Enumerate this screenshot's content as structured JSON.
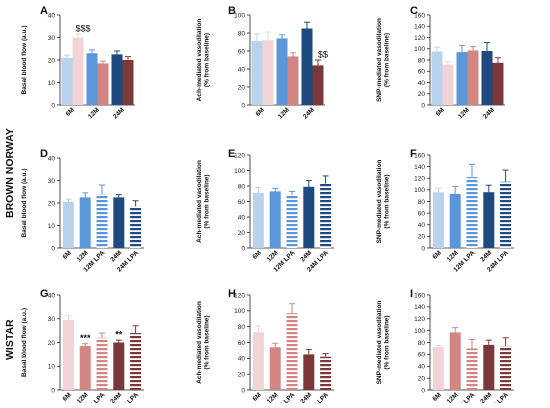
{
  "colors": {
    "bn_6m": "#b9d3ee",
    "bn_12m": "#5b96d8",
    "bn_24m": "#1f4a7f",
    "w_6m": "#f2d3d6",
    "w_12m": "#d28684",
    "w_24m": "#7a3838"
  },
  "row_labels": {
    "brown_norway": "BROWN NORWAY",
    "wistar": "WISTAR"
  },
  "chart_data": [
    {
      "id": "A",
      "type": "bar",
      "ylabel": "Basal blood flow (a.u.)",
      "ylim": [
        0,
        40
      ],
      "ticks": [
        0,
        10,
        20,
        30,
        40
      ],
      "groups": [
        "6M",
        "12M",
        "24M"
      ],
      "bars": [
        {
          "value": 21,
          "error": 1.2,
          "color": "#b9d3ee"
        },
        {
          "value": 30,
          "error": 1.5,
          "color": "#f2d3d6",
          "annotation": "$$$"
        },
        {
          "value": 23,
          "error": 1.5,
          "color": "#5b96d8"
        },
        {
          "value": 18.5,
          "error": 1,
          "color": "#d28684"
        },
        {
          "value": 22.5,
          "error": 1.5,
          "color": "#1f4a7f"
        },
        {
          "value": 20,
          "error": 1.5,
          "color": "#7a3838"
        }
      ]
    },
    {
      "id": "B",
      "type": "bar",
      "ylabel": "Ach-mediated vasodilation (% from baseline)",
      "ylim": [
        0,
        100
      ],
      "ticks": [
        0,
        20,
        40,
        60,
        80,
        100
      ],
      "groups": [
        "6M",
        "12M",
        "24M"
      ],
      "bars": [
        {
          "value": 71,
          "error": 8,
          "color": "#b9d3ee"
        },
        {
          "value": 72,
          "error": 9,
          "color": "#f2d3d6"
        },
        {
          "value": 74,
          "error": 4,
          "color": "#5b96d8"
        },
        {
          "value": 54,
          "error": 4,
          "color": "#d28684"
        },
        {
          "value": 85,
          "error": 7,
          "color": "#1f4a7f"
        },
        {
          "value": 44,
          "error": 6,
          "color": "#7a3838",
          "annotation": "$$"
        }
      ]
    },
    {
      "id": "C",
      "type": "bar",
      "ylabel": "SNP-mediated vasodilation (% from baseline)",
      "ylim": [
        0,
        160
      ],
      "ticks": [
        0,
        20,
        40,
        60,
        80,
        100,
        120,
        140,
        160
      ],
      "groups": [
        "6M",
        "12M",
        "24M"
      ],
      "bars": [
        {
          "value": 95,
          "error": 8,
          "color": "#b9d3ee"
        },
        {
          "value": 72,
          "error": 5,
          "color": "#f2d3d6"
        },
        {
          "value": 94,
          "error": 12,
          "color": "#5b96d8"
        },
        {
          "value": 97,
          "error": 7,
          "color": "#d28684"
        },
        {
          "value": 96,
          "error": 15,
          "color": "#1f4a7f"
        },
        {
          "value": 75,
          "error": 9,
          "color": "#7a3838"
        }
      ]
    },
    {
      "id": "D",
      "type": "bar",
      "ylabel": "Basal blood flow (a.u.)",
      "ylim": [
        0,
        40
      ],
      "ticks": [
        0,
        10,
        20,
        30,
        40
      ],
      "categories": [
        "6M",
        "12M",
        "12M LPA",
        "24M",
        "24M LPA"
      ],
      "bars": [
        {
          "value": 20.5,
          "error": 1.2,
          "color": "#b9d3ee"
        },
        {
          "value": 22.5,
          "error": 2,
          "color": "#5b96d8"
        },
        {
          "value": 24,
          "error": 4,
          "color": "#5b96d8",
          "pattern": "stripes"
        },
        {
          "value": 22.5,
          "error": 1.2,
          "color": "#1f4a7f"
        },
        {
          "value": 18.5,
          "error": 2.5,
          "color": "#1f4a7f",
          "pattern": "stripes"
        }
      ]
    },
    {
      "id": "E",
      "type": "bar",
      "ylabel": "Ach-mediated vasodilation (% from baseline)",
      "ylim": [
        0,
        120
      ],
      "ticks": [
        0,
        20,
        40,
        60,
        80,
        100,
        120
      ],
      "categories": [
        "6M",
        "12M",
        "12M LPA",
        "24M",
        "24M LPA"
      ],
      "bars": [
        {
          "value": 71,
          "error": 7,
          "color": "#b9d3ee"
        },
        {
          "value": 73,
          "error": 4,
          "color": "#5b96d8"
        },
        {
          "value": 68,
          "error": 5,
          "color": "#5b96d8",
          "pattern": "stripes"
        },
        {
          "value": 79,
          "error": 8,
          "color": "#1f4a7f"
        },
        {
          "value": 83,
          "error": 10,
          "color": "#1f4a7f",
          "pattern": "stripes"
        }
      ]
    },
    {
      "id": "F",
      "type": "bar",
      "ylabel": "SNP-mediated vasodilation (% from baseline)",
      "ylim": [
        0,
        160
      ],
      "ticks": [
        0,
        20,
        40,
        60,
        80,
        100,
        120,
        140,
        160
      ],
      "categories": [
        "6M",
        "12M",
        "12M LPA",
        "24M",
        "24M LPA"
      ],
      "bars": [
        {
          "value": 96,
          "error": 7,
          "color": "#b9d3ee"
        },
        {
          "value": 93,
          "error": 13,
          "color": "#5b96d8"
        },
        {
          "value": 122,
          "error": 22,
          "color": "#5b96d8",
          "pattern": "stripes"
        },
        {
          "value": 96,
          "error": 12,
          "color": "#1f4a7f"
        },
        {
          "value": 114,
          "error": 20,
          "color": "#1f4a7f",
          "pattern": "stripes"
        }
      ]
    },
    {
      "id": "G",
      "type": "bar",
      "ylabel": "Basal blood flow (a.u.)",
      "ylim": [
        0,
        40
      ],
      "ticks": [
        0,
        10,
        20,
        30,
        40
      ],
      "categories": [
        "6M",
        "12M",
        "12M LPA",
        "24M",
        "24M LPA"
      ],
      "bars": [
        {
          "value": 29.5,
          "error": 1.8,
          "color": "#f2d3d6"
        },
        {
          "value": 18.5,
          "error": 1,
          "color": "#d28684",
          "annotation": "***"
        },
        {
          "value": 22,
          "error": 2,
          "color": "#d28684",
          "pattern": "stripes"
        },
        {
          "value": 20,
          "error": 1,
          "color": "#7a3838",
          "annotation": "**"
        },
        {
          "value": 24,
          "error": 3,
          "color": "#7a3838",
          "pattern": "stripes"
        }
      ]
    },
    {
      "id": "H",
      "type": "bar",
      "ylabel": "Ach-mediated vasodilation (% from baseline)",
      "ylim": [
        0,
        120
      ],
      "ticks": [
        0,
        20,
        40,
        60,
        80,
        100,
        120
      ],
      "categories": [
        "6M",
        "12M",
        "12M LPA",
        "24M",
        "24M LPA"
      ],
      "bars": [
        {
          "value": 73,
          "error": 8,
          "color": "#f2d3d6"
        },
        {
          "value": 54,
          "error": 5,
          "color": "#d28684"
        },
        {
          "value": 97,
          "error": 12,
          "color": "#d28684",
          "pattern": "stripes"
        },
        {
          "value": 45,
          "error": 6,
          "color": "#7a3838"
        },
        {
          "value": 42,
          "error": 4,
          "color": "#7a3838",
          "pattern": "stripes"
        }
      ]
    },
    {
      "id": "I",
      "type": "bar",
      "ylabel": "SNP-mediated vasodilation (% from baseline)",
      "ylim": [
        0,
        160
      ],
      "ticks": [
        0,
        20,
        40,
        60,
        80,
        100,
        120,
        140,
        160
      ],
      "categories": [
        "6M",
        "12M",
        "12M LPA",
        "24M",
        "24M LPA"
      ],
      "bars": [
        {
          "value": 72,
          "error": 3,
          "color": "#f2d3d6"
        },
        {
          "value": 97,
          "error": 8,
          "color": "#d28684"
        },
        {
          "value": 70,
          "error": 15,
          "color": "#d28684",
          "pattern": "stripes"
        },
        {
          "value": 76,
          "error": 8,
          "color": "#7a3838"
        },
        {
          "value": 74,
          "error": 14,
          "color": "#7a3838",
          "pattern": "stripes"
        }
      ]
    }
  ]
}
